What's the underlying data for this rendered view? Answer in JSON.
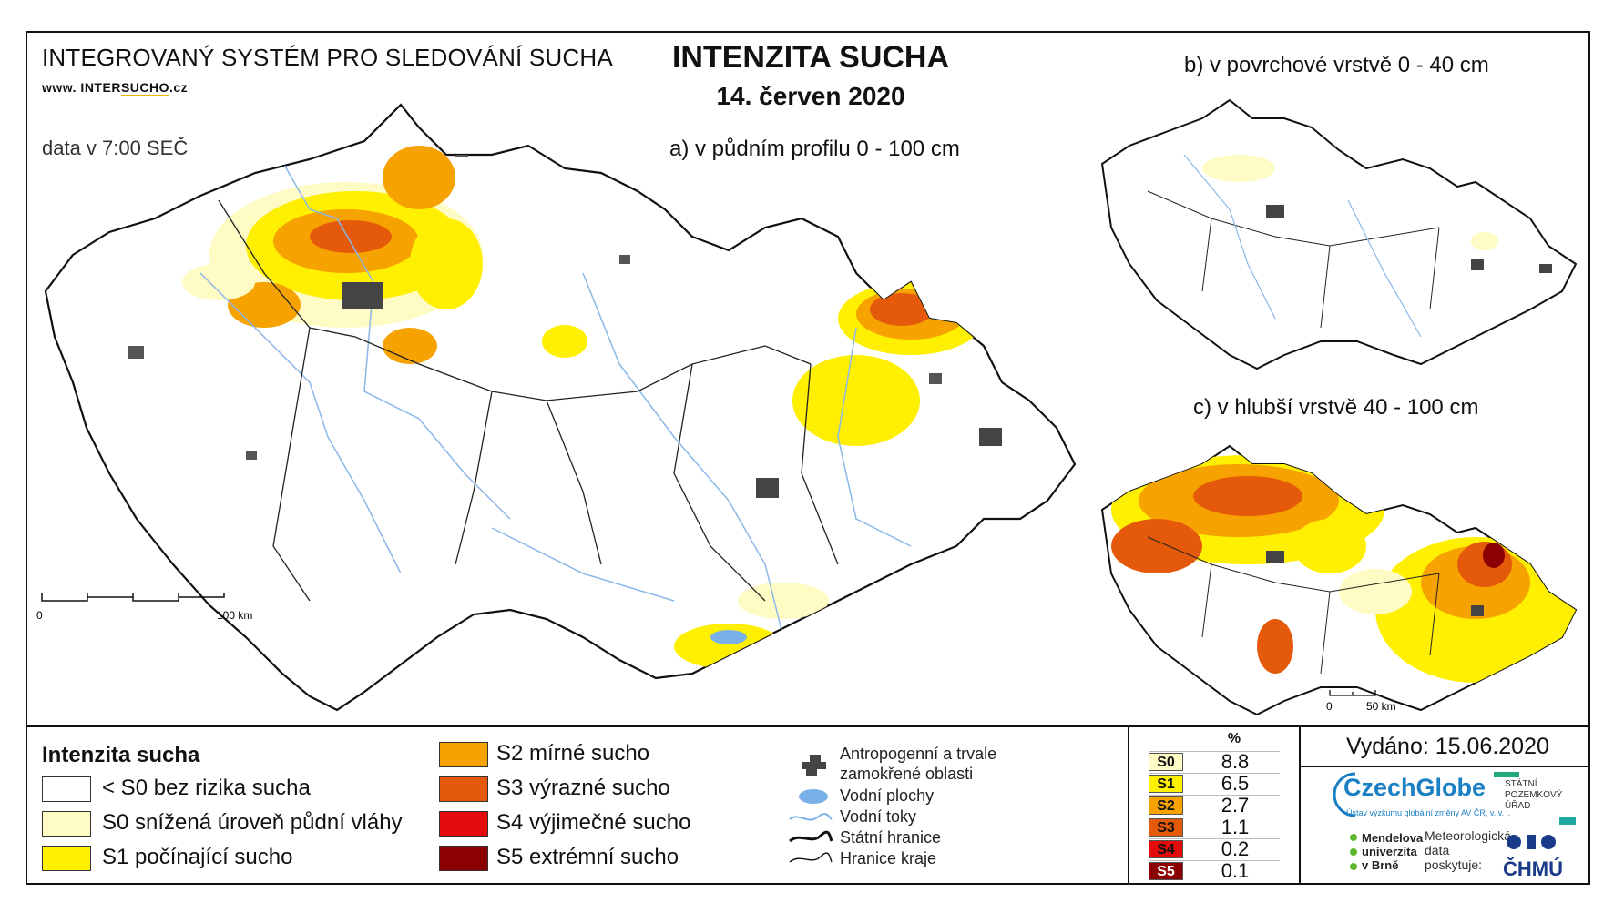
{
  "header": {
    "system_title": "INTEGROVANÝ SYSTÉM PRO SLEDOVÁNÍ SUCHA",
    "website_prefix": "www. INTER",
    "website_mid": "SUCHO",
    "website_suffix": ".cz",
    "data_time": "data v 7:00 SEČ",
    "main_title": "INTENZITA SUCHA",
    "date": "14. červen 2020"
  },
  "maps": {
    "a_label": "a) v půdním profilu 0 - 100 cm",
    "b_label": "b) v povrchové vrstvě 0 - 40 cm",
    "c_label": "c) v hlubší vrstvě 40 - 100 cm",
    "scale_main": {
      "zero": "0",
      "end": "100 km"
    },
    "scale_small": {
      "zero": "0",
      "end": "50 km"
    }
  },
  "legend": {
    "title": "Intenzita sucha",
    "items": [
      {
        "label": "< S0 bez rizika sucha",
        "color": "#ffffff"
      },
      {
        "label": "S0 snížená úroveň půdní vláhy",
        "color": "#fffbc4"
      },
      {
        "label": "S1 počínající sucho",
        "color": "#ffef00"
      },
      {
        "label": "S2 mírné sucho",
        "color": "#f6a200"
      },
      {
        "label": "S3 výrazné sucho",
        "color": "#e55a0a"
      },
      {
        "label": "S4 výjimečné sucho",
        "color": "#e30b0b"
      },
      {
        "label": "S5 extrémní sucho",
        "color": "#8b0000"
      }
    ],
    "symbols": {
      "anthro_line1": "Antropogenní a trvale",
      "anthro_line2": "zamokřené oblasti",
      "water_bodies": "Vodní plochy",
      "water_streams": "Vodní toky",
      "state_border": "Státní hranice",
      "region_border": "Hranice kraje"
    }
  },
  "stats": {
    "header": "%",
    "rows": [
      {
        "code": "S0",
        "value": "8.8",
        "color": "#fffbc4"
      },
      {
        "code": "S1",
        "value": "6.5",
        "color": "#ffef00"
      },
      {
        "code": "S2",
        "value": "2.7",
        "color": "#f6a200"
      },
      {
        "code": "S3",
        "value": "1.1",
        "color": "#e55a0a"
      },
      {
        "code": "S4",
        "value": "0.2",
        "color": "#e30b0b"
      },
      {
        "code": "S5",
        "value": "0.1",
        "color": "#8b0000"
      }
    ]
  },
  "footer": {
    "issued": "Vydáno: 15.06.2020",
    "czechglobe": "CzechGlobe",
    "czechglobe_sub": "Ústav výzkumu globální změny AV ČR, v. v. i.",
    "spu_line1": "STÁTNÍ",
    "spu_line2": "POZEMKOVÝ",
    "spu_line3": "ÚŘAD",
    "mendel_line1": "Mendelova",
    "mendel_line2": "univerzita",
    "mendel_line3": "v Brně",
    "met_line1": "Meteorologická",
    "met_line2": "data",
    "met_line3": "poskytuje:",
    "chmu": "ČHMÚ"
  }
}
